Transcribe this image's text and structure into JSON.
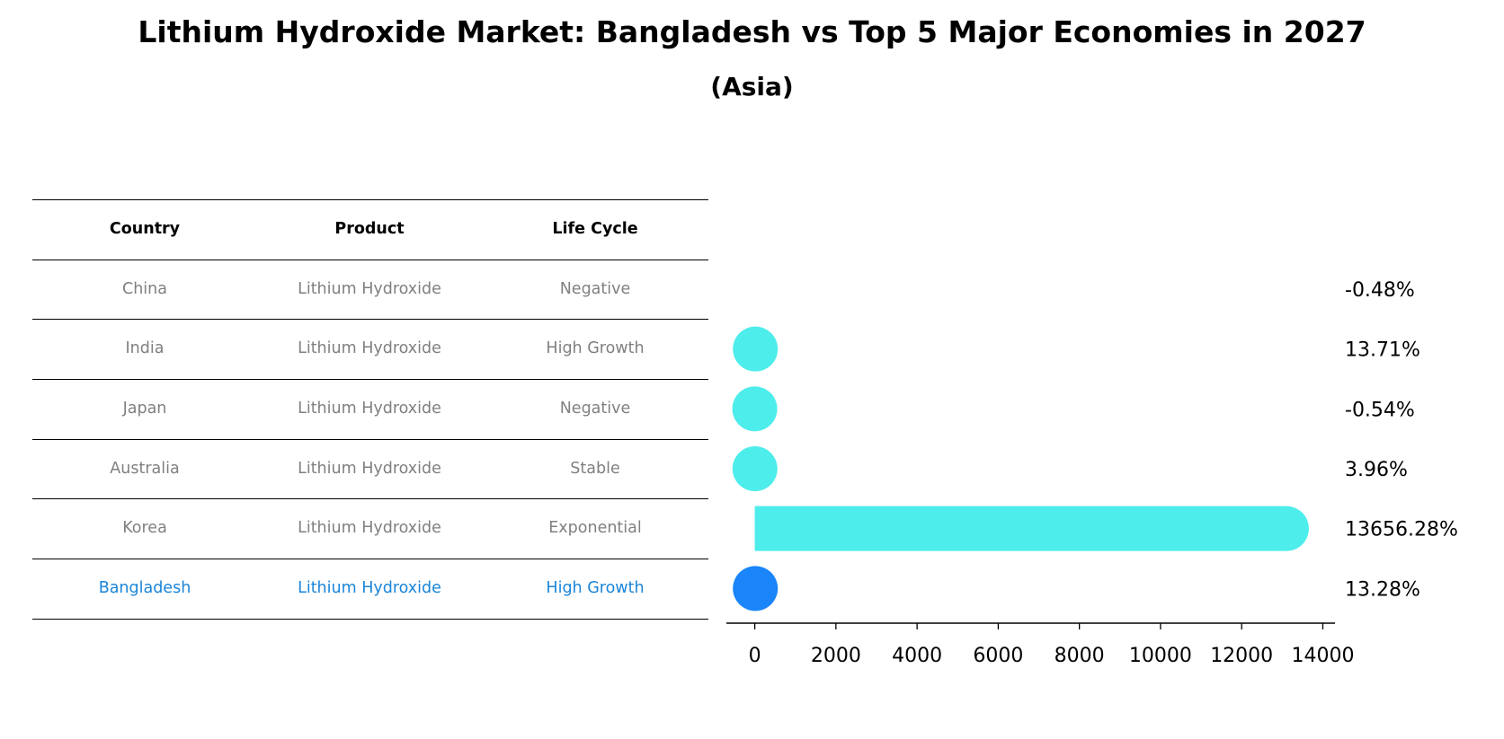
{
  "title": "Lithium Hydroxide Market: Bangladesh vs Top 5 Major Economies in 2027",
  "subtitle": "(Asia)",
  "table": {
    "headers": [
      "Country",
      "Product",
      "Life Cycle"
    ],
    "rows": [
      {
        "country": "China",
        "product": "Lithium Hydroxide",
        "life_cycle": "Negative"
      },
      {
        "country": "India",
        "product": "Lithium Hydroxide",
        "life_cycle": "High Growth"
      },
      {
        "country": "Japan",
        "product": "Lithium Hydroxide",
        "life_cycle": "Negative"
      },
      {
        "country": "Australia",
        "product": "Lithium Hydroxide",
        "life_cycle": "Stable"
      },
      {
        "country": "Korea",
        "product": "Lithium Hydroxide",
        "life_cycle": "Exponential"
      },
      {
        "country": "Bangladesh",
        "product": "Lithium Hydroxide",
        "life_cycle": "High Growth"
      }
    ]
  },
  "colors": {
    "bar": "#4DEDEB",
    "highlight": "#1A85F8",
    "highlight_text": "#1A85D8",
    "muted_text": "#808080"
  },
  "chart_data": {
    "type": "bar",
    "orientation": "horizontal",
    "categories": [
      "China",
      "India",
      "Japan",
      "Australia",
      "Korea",
      "Bangladesh"
    ],
    "values": [
      -0.48,
      13.71,
      -0.54,
      3.96,
      13656.28,
      13.28
    ],
    "value_labels": [
      "-0.48%",
      "13.71%",
      "-0.54%",
      "3.96%",
      "13656.28%",
      "13.28%"
    ],
    "highlight_category": "Bangladesh",
    "xlim": [
      -700,
      14300
    ],
    "xticks": [
      0,
      2000,
      4000,
      6000,
      8000,
      10000,
      12000,
      14000
    ],
    "xtick_labels": [
      "0",
      "2000",
      "4000",
      "6000",
      "8000",
      "10000",
      "12000",
      "14000"
    ],
    "xlabel": "",
    "ylabel": "",
    "grid": false
  }
}
